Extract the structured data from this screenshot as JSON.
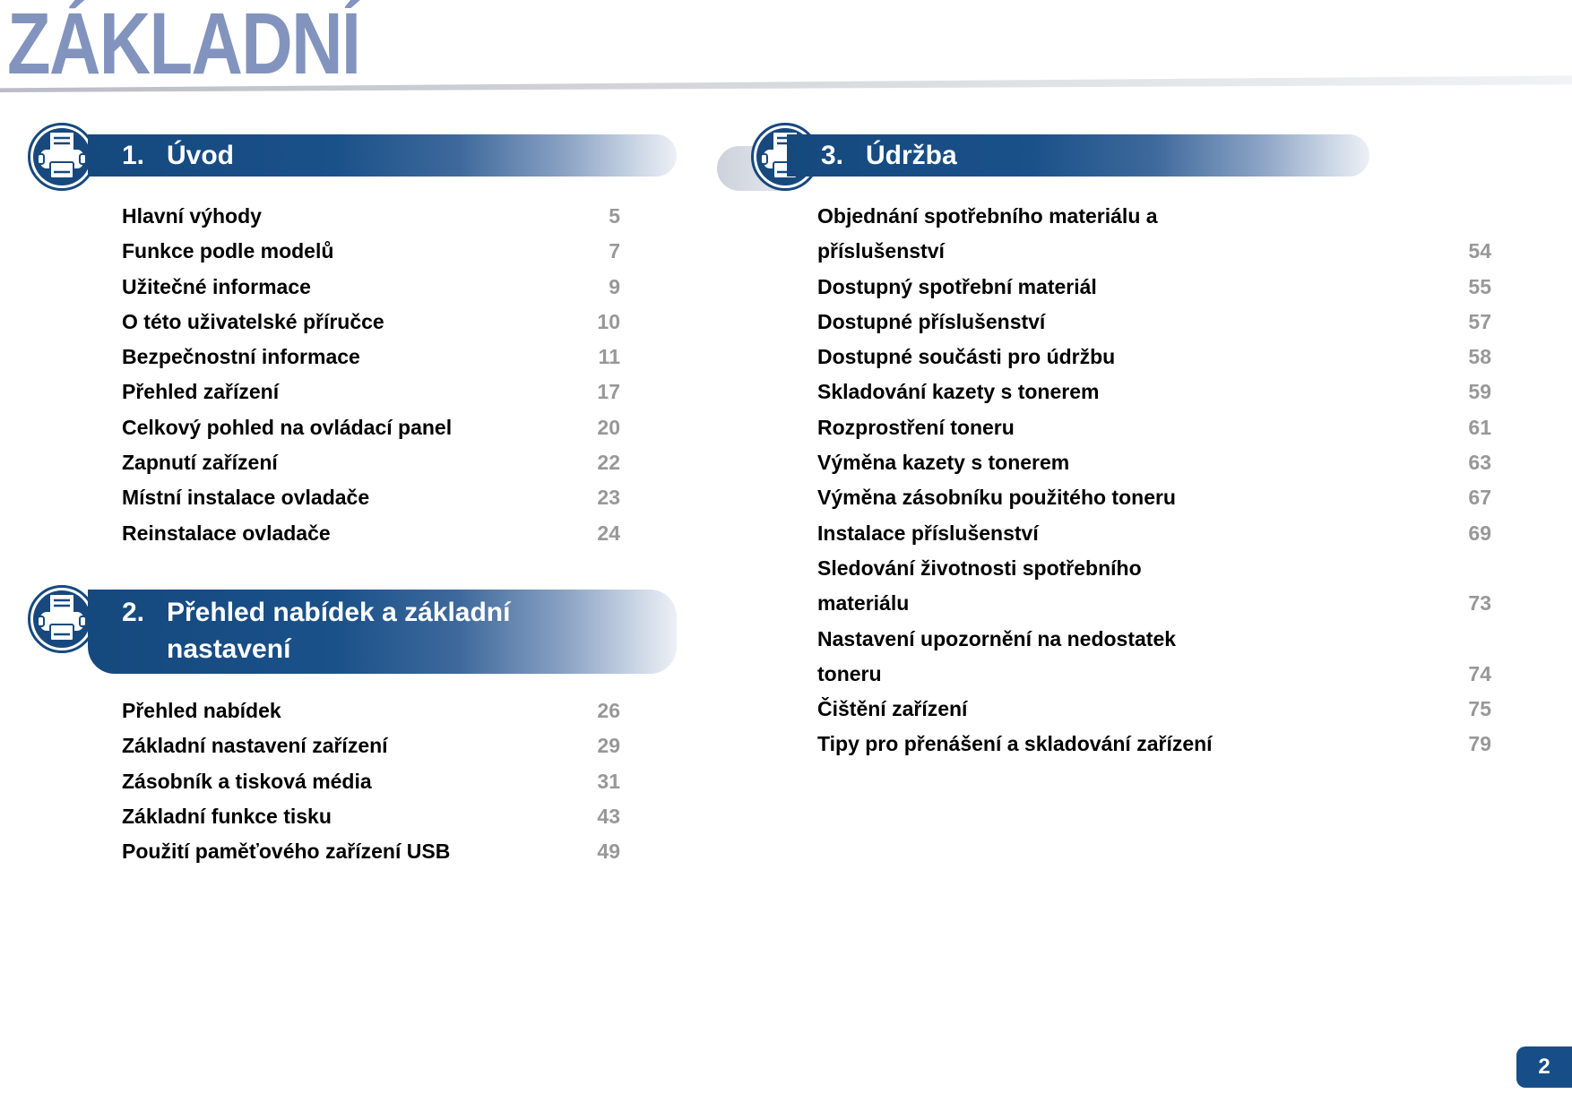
{
  "page": {
    "title": "ZÁKLADNÍ",
    "page_number_badge": "2",
    "accent_color": "#174E87",
    "title_color": "#8294BE",
    "page_num_color": "#989898"
  },
  "sections": [
    {
      "number": "1.",
      "title_line1": "Úvod",
      "title_line2": "",
      "icon": "printer-icon",
      "entries": [
        {
          "lines": [
            "Hlavní výhody"
          ],
          "page": "5"
        },
        {
          "lines": [
            "Funkce podle modelů"
          ],
          "page": "7"
        },
        {
          "lines": [
            "Užitečné informace"
          ],
          "page": "9"
        },
        {
          "lines": [
            "O této uživatelské příručce"
          ],
          "page": "10"
        },
        {
          "lines": [
            "Bezpečnostní informace"
          ],
          "page": "11"
        },
        {
          "lines": [
            "Přehled zařízení"
          ],
          "page": "17"
        },
        {
          "lines": [
            "Celkový pohled na ovládací panel"
          ],
          "page": "20"
        },
        {
          "lines": [
            "Zapnutí zařízení"
          ],
          "page": "22"
        },
        {
          "lines": [
            "Místní instalace ovladače"
          ],
          "page": "23"
        },
        {
          "lines": [
            "Reinstalace ovladače"
          ],
          "page": "24"
        }
      ]
    },
    {
      "number": "2.",
      "title_line1": "Přehled nabídek a základní",
      "title_line2": "nastavení",
      "icon": "printer-icon",
      "entries": [
        {
          "lines": [
            "Přehled nabídek"
          ],
          "page": "26"
        },
        {
          "lines": [
            "Základní nastavení zařízení"
          ],
          "page": "29"
        },
        {
          "lines": [
            "Zásobník a tisková média"
          ],
          "page": "31"
        },
        {
          "lines": [
            "Základní funkce tisku"
          ],
          "page": "43"
        },
        {
          "lines": [
            "Použití paměťového zařízení USB"
          ],
          "page": "49"
        }
      ]
    },
    {
      "number": "3.",
      "title_line1": "Údržba",
      "title_line2": "",
      "icon": "printer-icon",
      "entries": [
        {
          "lines": [
            "Objednání spotřebního materiálu a",
            "příslušenství"
          ],
          "page": "54"
        },
        {
          "lines": [
            "Dostupný spotřební materiál"
          ],
          "page": "55"
        },
        {
          "lines": [
            "Dostupné příslušenství"
          ],
          "page": "57"
        },
        {
          "lines": [
            "Dostupné součásti pro údržbu"
          ],
          "page": "58"
        },
        {
          "lines": [
            "Skladování kazety s tonerem"
          ],
          "page": "59"
        },
        {
          "lines": [
            "Rozprostření toneru"
          ],
          "page": "61"
        },
        {
          "lines": [
            "Výměna kazety s tonerem"
          ],
          "page": "63"
        },
        {
          "lines": [
            "Výměna zásobníku použitého toneru"
          ],
          "page": "67"
        },
        {
          "lines": [
            "Instalace příslušenství"
          ],
          "page": "69"
        },
        {
          "lines": [
            "Sledování životnosti spotřebního",
            "materiálu"
          ],
          "page": "73"
        },
        {
          "lines": [
            "Nastavení upozornění na nedostatek",
            "toneru"
          ],
          "page": "74"
        },
        {
          "lines": [
            "Čištění zařízení"
          ],
          "page": "75"
        },
        {
          "lines": [
            "Tipy pro přenášení a skladování zařízení"
          ],
          "page": "79"
        }
      ]
    }
  ]
}
